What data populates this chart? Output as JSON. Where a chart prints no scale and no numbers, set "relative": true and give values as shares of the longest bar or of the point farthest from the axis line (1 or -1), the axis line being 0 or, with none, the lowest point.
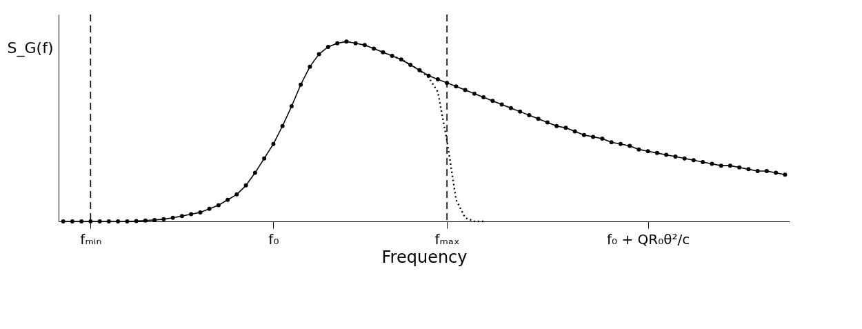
{
  "chart_data": {
    "type": "line",
    "relative": true,
    "xlabel": "Frequency",
    "ylabel": "S_G(f)",
    "categories": [
      null,
      null,
      null,
      "fₘᵢₙ",
      null,
      null,
      null,
      null,
      null,
      null,
      null,
      null,
      null,
      null,
      null,
      null,
      null,
      null,
      null,
      null,
      null,
      null,
      null,
      "f₀",
      null,
      null,
      null,
      null,
      null,
      null,
      null,
      null,
      null,
      null,
      null,
      null,
      null,
      null,
      null,
      null,
      null,
      null,
      "fₘₐₓ",
      null,
      null,
      null,
      null,
      null,
      null,
      null,
      null,
      null,
      null,
      null,
      null,
      null,
      null,
      null,
      null,
      null,
      null,
      null,
      null,
      null,
      "f₀ + QR₀θ²/c",
      null,
      null,
      null,
      null,
      null,
      null,
      null,
      null,
      null,
      null,
      null,
      null,
      null,
      null,
      null
    ],
    "series": [
      {
        "color": "#000000",
        "marker": "circle",
        "line_style": "solid",
        "values": [
          0,
          0,
          0,
          0,
          0,
          0,
          0,
          0,
          0.002,
          0.005,
          0.008,
          0.012,
          0.02,
          0.03,
          0.04,
          0.05,
          0.07,
          0.09,
          0.12,
          0.15,
          0.2,
          0.27,
          0.35,
          0.43,
          0.53,
          0.64,
          0.76,
          0.86,
          0.93,
          0.97,
          0.99,
          1.0,
          0.99,
          0.98,
          0.96,
          0.94,
          0.92,
          0.9,
          0.87,
          0.84,
          0.81,
          0.79,
          0.77,
          0.75,
          0.73,
          0.71,
          0.69,
          0.67,
          0.65,
          0.63,
          0.61,
          0.59,
          0.57,
          0.55,
          0.53,
          0.52,
          0.5,
          0.48,
          0.47,
          0.46,
          0.44,
          0.43,
          0.42,
          0.4,
          0.39,
          0.38,
          0.37,
          0.36,
          0.35,
          0.34,
          0.33,
          0.32,
          0.31,
          0.31,
          0.3,
          0.29,
          0.28,
          0.28,
          0.27,
          0.26
        ]
      },
      {
        "color": "#000000",
        "marker": "none",
        "line_style": "dotted",
        "values": [
          null,
          null,
          null,
          null,
          null,
          null,
          null,
          null,
          null,
          null,
          null,
          null,
          null,
          null,
          null,
          null,
          null,
          null,
          null,
          null,
          null,
          null,
          null,
          null,
          null,
          null,
          null,
          null,
          null,
          null,
          null,
          null,
          null,
          null,
          null,
          null,
          0.92,
          0.9,
          0.87,
          0.84,
          0.8,
          0.72,
          0.45,
          0.12,
          0.02,
          0,
          0,
          null,
          null,
          null,
          null,
          null,
          null,
          null,
          null,
          null,
          null,
          null,
          null,
          null,
          null,
          null,
          null,
          null,
          null,
          null,
          null,
          null,
          null,
          null,
          null,
          null,
          null,
          null,
          null,
          null,
          null,
          null,
          null,
          null
        ]
      }
    ],
    "ref_lines": [
      {
        "axis": "x",
        "value": "fₘᵢₙ",
        "color": "#000000",
        "line_style": "dashed"
      },
      {
        "axis": "x",
        "value": "fₘₐₓ",
        "color": "#000000",
        "line_style": "dashed"
      }
    ],
    "grid": false
  }
}
